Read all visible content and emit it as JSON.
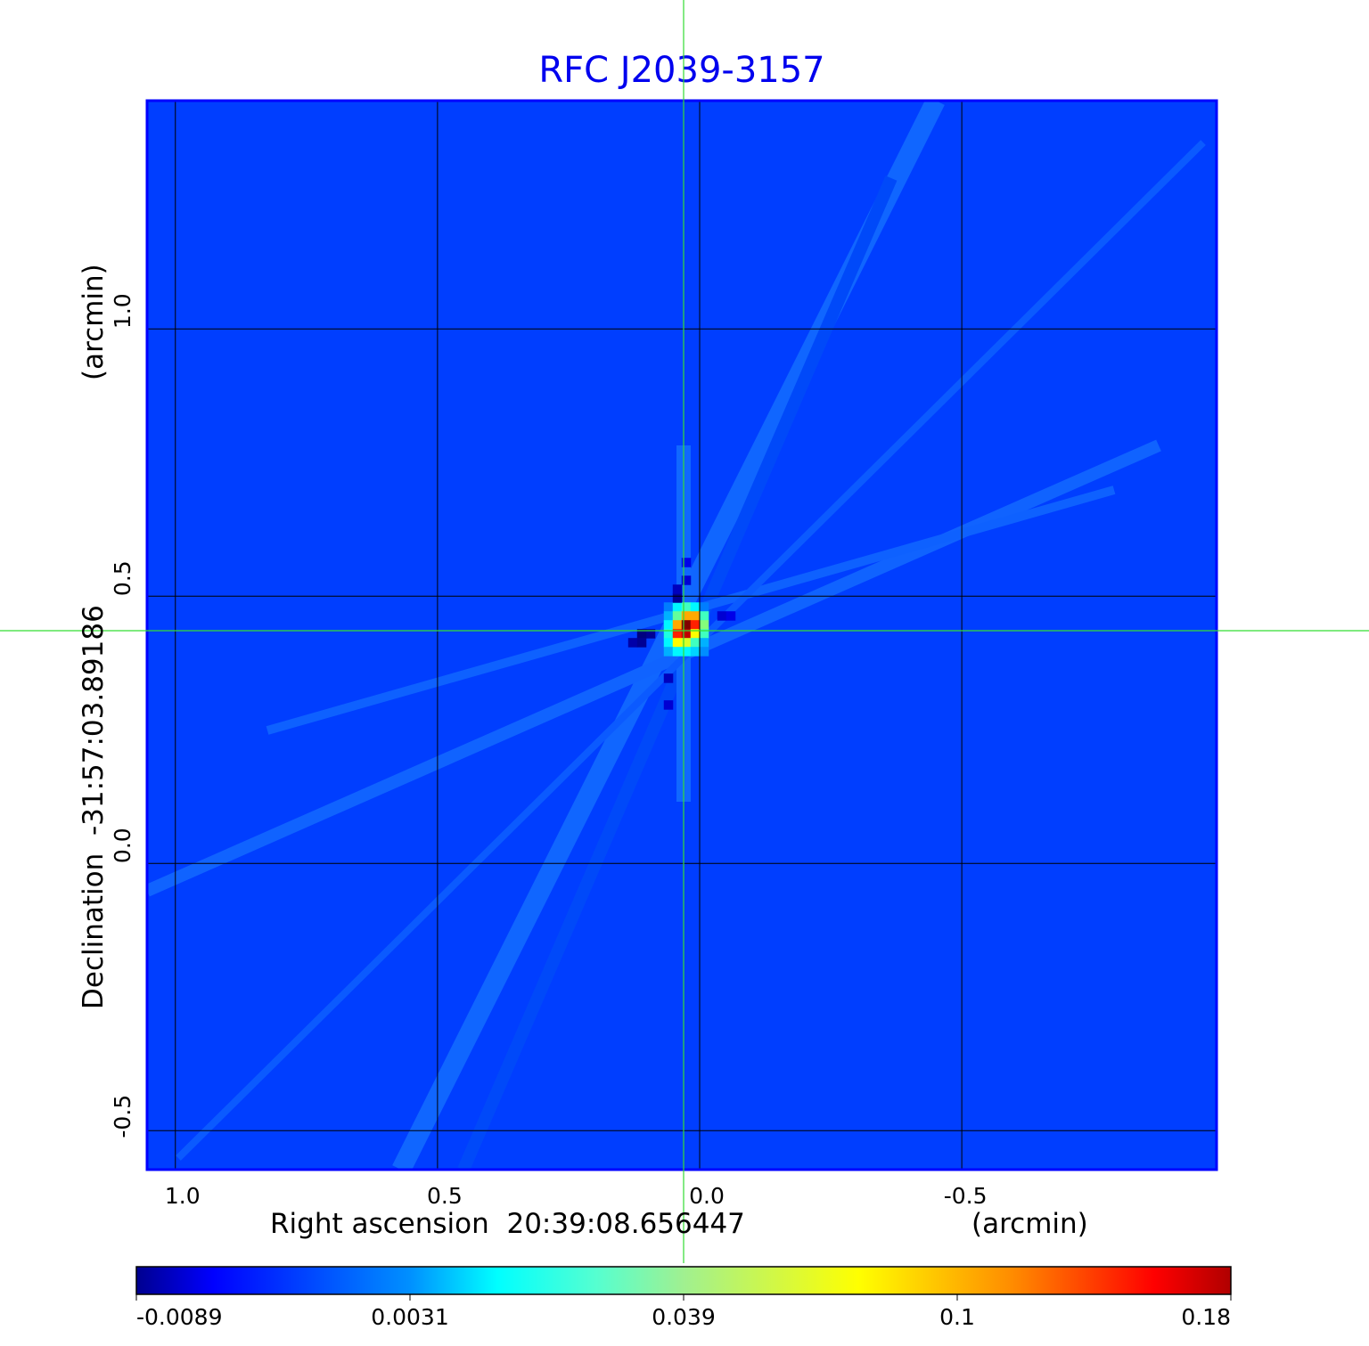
{
  "chart_data": {
    "type": "heatmap",
    "title": "RFC J2039-3157",
    "xlabel": "Right ascension  20:39:08.656447",
    "xunit": "(arcmin)",
    "ylabel": "Declination  -31:57:03.89186",
    "yunit": "(arcmin)",
    "xlim": [
      1.054,
      -0.986
    ],
    "ylim": [
      -0.573,
      1.427
    ],
    "xticks": [
      {
        "value": 1.0,
        "label": "1.0"
      },
      {
        "value": 0.5,
        "label": "0.5"
      },
      {
        "value": 0.0,
        "label": "0.0"
      },
      {
        "value": -0.5,
        "label": "-0.5"
      }
    ],
    "yticks": [
      {
        "value": 1.0,
        "label": "1.0"
      },
      {
        "value": 0.5,
        "label": "0.5"
      },
      {
        "value": 0.0,
        "label": "0.0"
      },
      {
        "value": -0.5,
        "label": "-0.5"
      }
    ],
    "grid": true,
    "crosshair": {
      "x": 0.031,
      "y": 0.435
    },
    "background_value": 0.0,
    "pixel_size_arcmin": 0.017,
    "peak_cells": [
      {
        "i": -2,
        "j": -3,
        "v": 0.003
      },
      {
        "i": -1,
        "j": -3,
        "v": 0.02
      },
      {
        "i": 0,
        "j": -3,
        "v": 0.03
      },
      {
        "i": 1,
        "j": -3,
        "v": 0.02
      },
      {
        "i": 2,
        "j": -3,
        "v": 0.003
      },
      {
        "i": -2,
        "j": -2,
        "v": 0.01
      },
      {
        "i": -1,
        "j": -2,
        "v": 0.035
      },
      {
        "i": 0,
        "j": -2,
        "v": 0.09
      },
      {
        "i": 1,
        "j": -2,
        "v": 0.09
      },
      {
        "i": 2,
        "j": -2,
        "v": 0.03
      },
      {
        "i": -2,
        "j": -1,
        "v": 0.02
      },
      {
        "i": -1,
        "j": -1,
        "v": 0.09
      },
      {
        "i": 0,
        "j": -1,
        "v": 0.18
      },
      {
        "i": 1,
        "j": -1,
        "v": 0.13
      },
      {
        "i": 2,
        "j": -1,
        "v": 0.04
      },
      {
        "i": -2,
        "j": 0,
        "v": 0.025
      },
      {
        "i": -1,
        "j": 0,
        "v": 0.13
      },
      {
        "i": 0,
        "j": 0,
        "v": 0.16
      },
      {
        "i": 1,
        "j": 0,
        "v": 0.07
      },
      {
        "i": 2,
        "j": 0,
        "v": 0.03
      },
      {
        "i": -2,
        "j": 1,
        "v": 0.02
      },
      {
        "i": -1,
        "j": 1,
        "v": 0.07
      },
      {
        "i": 0,
        "j": 1,
        "v": 0.06
      },
      {
        "i": 1,
        "j": 1,
        "v": 0.03
      },
      {
        "i": 2,
        "j": 1,
        "v": 0.01
      },
      {
        "i": -2,
        "j": 2,
        "v": 0.01
      },
      {
        "i": -1,
        "j": 2,
        "v": 0.02
      },
      {
        "i": 0,
        "j": 2,
        "v": 0.02
      },
      {
        "i": 1,
        "j": 2,
        "v": 0.015
      },
      {
        "i": 2,
        "j": 2,
        "v": 0.005
      },
      {
        "i": -4,
        "j": 0,
        "v": -0.008
      },
      {
        "i": -5,
        "j": 0,
        "v": -0.0089
      },
      {
        "i": -6,
        "j": 1,
        "v": -0.007
      },
      {
        "i": -5,
        "j": 1,
        "v": -0.008
      },
      {
        "i": -1,
        "j": -4,
        "v": -0.008
      },
      {
        "i": -1,
        "j": -5,
        "v": -0.006
      },
      {
        "i": 0,
        "j": -6,
        "v": -0.005
      },
      {
        "i": 0,
        "j": -8,
        "v": -0.004
      },
      {
        "i": 4,
        "j": -2,
        "v": -0.005
      },
      {
        "i": 5,
        "j": -2,
        "v": -0.004
      },
      {
        "i": -2,
        "j": 5,
        "v": -0.006
      },
      {
        "i": -2,
        "j": 8,
        "v": -0.005
      }
    ],
    "colorbar": {
      "ticks": [
        -0.0089,
        0.0031,
        0.039,
        0.1,
        0.18
      ],
      "labels": [
        "-0.0089",
        "0.0031",
        "0.039",
        "0.1",
        "0.18"
      ],
      "colormap": "jet"
    }
  },
  "colors": {
    "title": "#0000ee",
    "frame": "#0000ff",
    "crosshair": "#33dd33",
    "grid": "#000000"
  }
}
